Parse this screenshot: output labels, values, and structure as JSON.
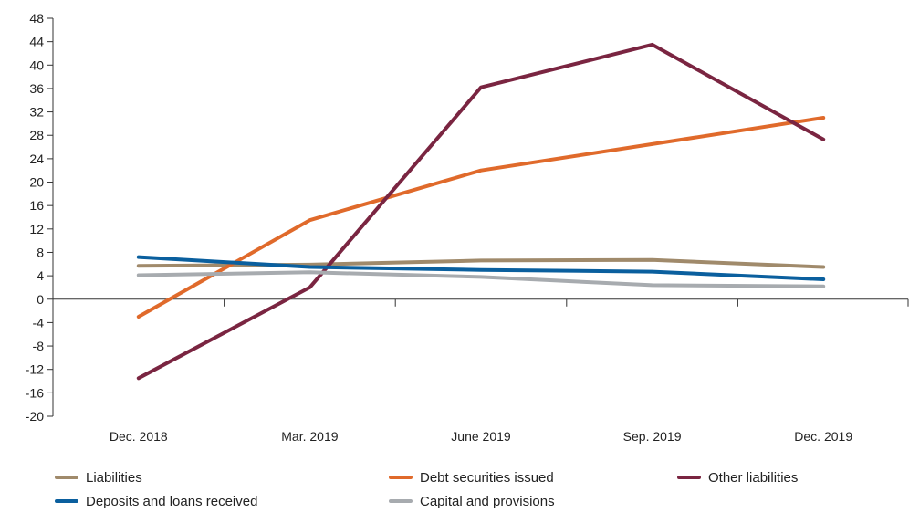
{
  "chart_data": {
    "type": "line",
    "categories": [
      "Dec. 2018",
      "Mar. 2019",
      "June 2019",
      "Sep. 2019",
      "Dec. 2019"
    ],
    "ylim": [
      -20,
      48
    ],
    "yticks": [
      48,
      44,
      40,
      36,
      32,
      28,
      24,
      20,
      16,
      12,
      8,
      4,
      0,
      -4,
      -8,
      -12,
      -16,
      -20
    ],
    "grid": false,
    "legend_position": "bottom",
    "series": [
      {
        "name": "Liabilities",
        "color": "#a08a6b",
        "values": [
          5.7,
          5.9,
          6.6,
          6.7,
          5.5
        ]
      },
      {
        "name": "Debt securities issued",
        "color": "#e06a2b",
        "values": [
          -3,
          13.5,
          22,
          26.5,
          31
        ]
      },
      {
        "name": "Other liabilities",
        "color": "#7a2541",
        "values": [
          -13.5,
          2,
          36.2,
          43.5,
          27.3
        ]
      },
      {
        "name": "Deposits and loans received",
        "color": "#0a5f9e",
        "values": [
          7.2,
          5.5,
          5.0,
          4.7,
          3.4
        ]
      },
      {
        "name": "Capital and provisions",
        "color": "#a7abaf",
        "values": [
          4.1,
          4.6,
          3.8,
          2.4,
          2.2
        ]
      }
    ]
  }
}
